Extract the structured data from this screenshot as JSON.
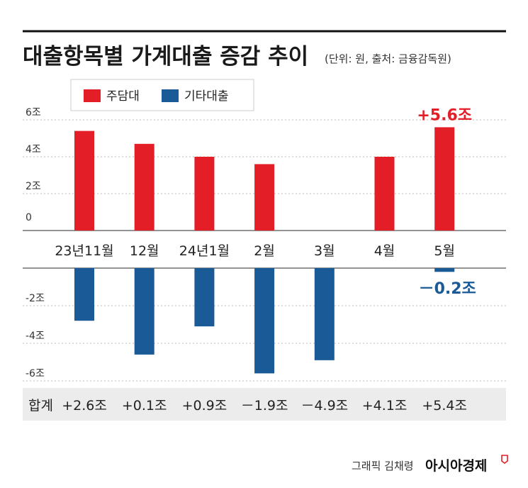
{
  "title": "대출항목별 가계대출 증감 추이",
  "source_note": "(단위: 원, 출처: 금융감독원)",
  "credit": {
    "graphic": "그래픽 김채령",
    "brand": "아시아경제"
  },
  "chart_data": {
    "type": "bar",
    "categories": [
      "23년11월",
      "12월",
      "24년1월",
      "2월",
      "3월",
      "4월",
      "5월"
    ],
    "series": [
      {
        "name": "주담대",
        "color": "#e41e26",
        "values": [
          5.4,
          4.7,
          4.0,
          3.6,
          0,
          4.0,
          5.6
        ]
      },
      {
        "name": "기타대출",
        "color": "#1a5a96",
        "values": [
          -2.8,
          -4.6,
          -3.1,
          -5.6,
          -4.9,
          0,
          -0.2
        ]
      }
    ],
    "upper_ticks": [
      {
        "value": 6,
        "label": "6조"
      },
      {
        "value": 4,
        "label": "4조"
      },
      {
        "value": 2,
        "label": "2조"
      },
      {
        "value": 0,
        "label": "0"
      }
    ],
    "lower_ticks": [
      {
        "value": -2,
        "label": "-2조"
      },
      {
        "value": -4,
        "label": "-4조"
      },
      {
        "value": -6,
        "label": "-6조"
      }
    ],
    "annotations": [
      {
        "category": "5월",
        "series": "주담대",
        "text": "+5.6조"
      },
      {
        "category": "5월",
        "series": "기타대출",
        "text": "－0.2조"
      }
    ],
    "totals_label": "합계",
    "totals": [
      "+2.6조",
      "+0.1조",
      "+0.9조",
      "－1.9조",
      "－4.9조",
      "+4.1조",
      "+5.4조"
    ],
    "grid": true,
    "legend_position": "top-left"
  }
}
